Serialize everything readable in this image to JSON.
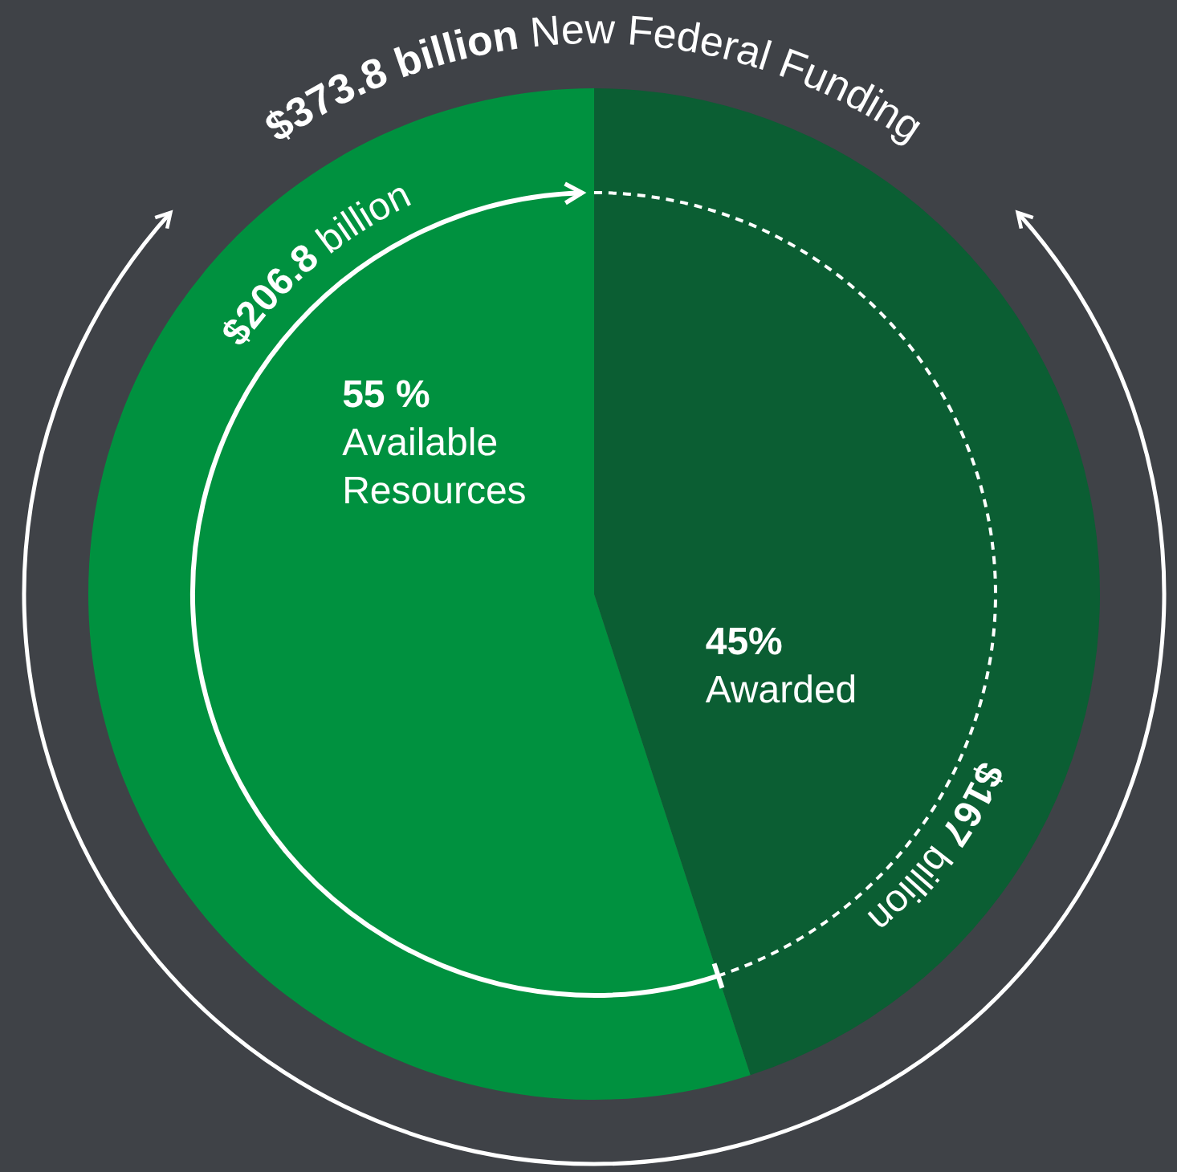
{
  "chart_data": {
    "type": "pie",
    "categories": [
      "Awarded",
      "Available Resources"
    ],
    "values": [
      45,
      55
    ],
    "value_labels": [
      "45%",
      "55 %"
    ],
    "colors": [
      "#0b5e33",
      "#00913f"
    ],
    "annotations": [
      "$373.8 billion New Federal Funding",
      "$206.8 billion",
      "$167 billion"
    ]
  }
}
